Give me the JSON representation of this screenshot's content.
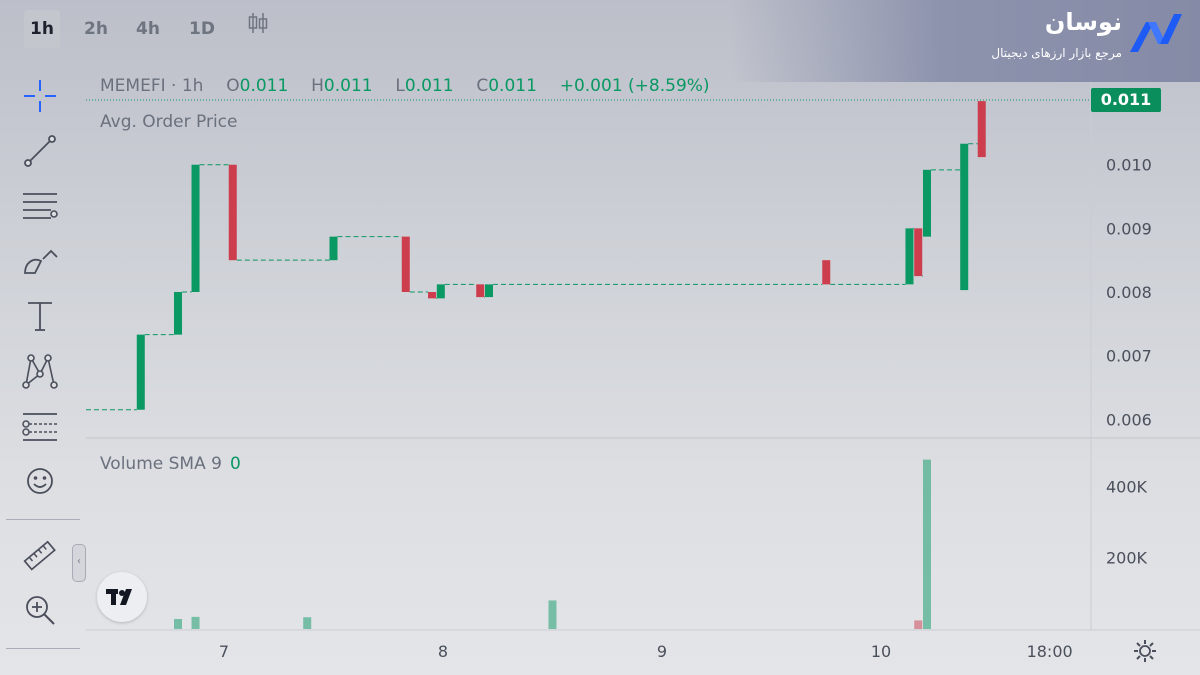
{
  "timeframes": [
    "1h",
    "2h",
    "4h",
    "1D"
  ],
  "active_timeframe": "1h",
  "brand": {
    "title": "نوسان",
    "subtitle": "مرجع بازار ارزهای دیجیتال"
  },
  "legend": {
    "symbol": "MEMEFI",
    "interval": "1h",
    "open_label": "O",
    "open": "0.011",
    "high_label": "H",
    "high": "0.011",
    "low_label": "L",
    "low": "0.011",
    "close_label": "C",
    "close": "0.011",
    "change": "+0.001",
    "change_pct": "(+8.59%)"
  },
  "indicator_label": "Avg. Order Price",
  "volume_label": "Volume SMA 9",
  "volume_value": "0",
  "last_price": "0.011",
  "tools": [
    "crosshair-icon",
    "trendline-icon",
    "fib-icon",
    "brush-icon",
    "text-icon",
    "pattern-icon",
    "forecast-icon",
    "emoji-icon",
    "ruler-icon",
    "zoom-in-icon"
  ],
  "colors": {
    "up": "#0a9863",
    "down": "#cc3d4d",
    "accent": "#2962ff"
  },
  "chart_data": {
    "type": "candlestick",
    "x_tick_labels": [
      "7",
      "8",
      "9",
      "10",
      "18:00"
    ],
    "price_axis": {
      "ticks": [
        "0.010",
        "0.009",
        "0.008",
        "0.007",
        "0.006"
      ],
      "range": [
        0.0058,
        0.0113
      ]
    },
    "volume_axis": {
      "ticks": [
        "400K",
        "200K"
      ],
      "range": [
        0,
        530000
      ]
    },
    "candles": [
      {
        "t": 6.62,
        "o": 0.00615,
        "c": 0.00733
      },
      {
        "t": 6.79,
        "o": 0.00733,
        "c": 0.008
      },
      {
        "t": 6.87,
        "o": 0.008,
        "c": 0.01
      },
      {
        "t": 7.04,
        "o": 0.01,
        "c": 0.0085
      },
      {
        "t": 7.5,
        "o": 0.0085,
        "c": 0.00887
      },
      {
        "t": 7.83,
        "o": 0.00887,
        "c": 0.008
      },
      {
        "t": 7.95,
        "o": 0.008,
        "c": 0.0079
      },
      {
        "t": 7.99,
        "o": 0.0079,
        "c": 0.00812
      },
      {
        "t": 8.17,
        "o": 0.00812,
        "c": 0.00792
      },
      {
        "t": 8.21,
        "o": 0.00792,
        "c": 0.00812
      },
      {
        "t": 9.75,
        "o": 0.0085,
        "c": 0.00812
      },
      {
        "t": 10.13,
        "o": 0.00812,
        "c": 0.009
      },
      {
        "t": 10.17,
        "o": 0.009,
        "c": 0.00825
      },
      {
        "t": 10.21,
        "o": 0.00887,
        "c": 0.00992
      },
      {
        "t": 10.38,
        "o": 0.00803,
        "c": 0.01033
      },
      {
        "t": 10.46,
        "o": 0.011,
        "c": 0.01012
      }
    ],
    "volume": [
      {
        "t": 6.79,
        "v": 28000,
        "up": true
      },
      {
        "t": 6.87,
        "v": 34000,
        "up": true
      },
      {
        "t": 7.38,
        "v": 33000,
        "up": true
      },
      {
        "t": 8.5,
        "v": 80000,
        "up": true
      },
      {
        "t": 10.17,
        "v": 24000,
        "up": false
      },
      {
        "t": 10.21,
        "v": 475000,
        "up": true
      }
    ],
    "grid": false
  }
}
